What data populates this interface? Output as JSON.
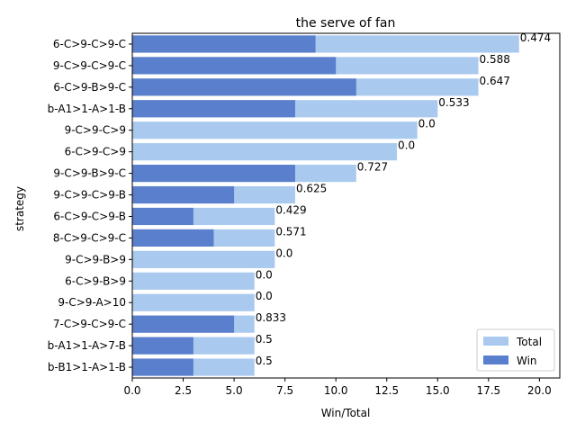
{
  "chart_data": {
    "type": "bar",
    "orientation": "horizontal",
    "title": "the serve of fan",
    "xlabel": "Win/Total",
    "ylabel": "strategy",
    "xlim": [
      0,
      21
    ],
    "xticks": [
      "0.0",
      "2.5",
      "5.0",
      "7.5",
      "10.0",
      "12.5",
      "15.0",
      "17.5",
      "20.0"
    ],
    "categories": [
      "6-C>9-C>9-C",
      "9-C>9-C>9-C",
      "6-C>9-B>9-C",
      "b-A1>1-A>1-B",
      "9-C>9-C>9",
      "6-C>9-C>9",
      "9-C>9-B>9-C",
      "9-C>9-C>9-B",
      "6-C>9-C>9-B",
      "8-C>9-C>9-C",
      "9-C>9-B>9",
      "6-C>9-B>9",
      "9-C>9-A>10",
      "7-C>9-C>9-C",
      "b-A1>1-A>7-B",
      "b-B1>1-A>1-B"
    ],
    "series": [
      {
        "name": "Total",
        "color": "#a9c9ef",
        "values": [
          19,
          17,
          17,
          15,
          14,
          13,
          11,
          8,
          7,
          7,
          7,
          6,
          6,
          6,
          6,
          6
        ]
      },
      {
        "name": "Win",
        "color": "#5a7fcc",
        "values": [
          9,
          10,
          11,
          8,
          0,
          0,
          8,
          5,
          3,
          4,
          0,
          0,
          0,
          5,
          3,
          3
        ]
      }
    ],
    "data_labels": [
      "0.474",
      "0.588",
      "0.647",
      "0.533",
      "0.0",
      "0.0",
      "0.727",
      "0.625",
      "0.429",
      "0.571",
      "0.0",
      "0.0",
      "0.0",
      "0.833",
      "0.5",
      "0.5"
    ],
    "legend_position": "lower-right",
    "grid": false
  }
}
